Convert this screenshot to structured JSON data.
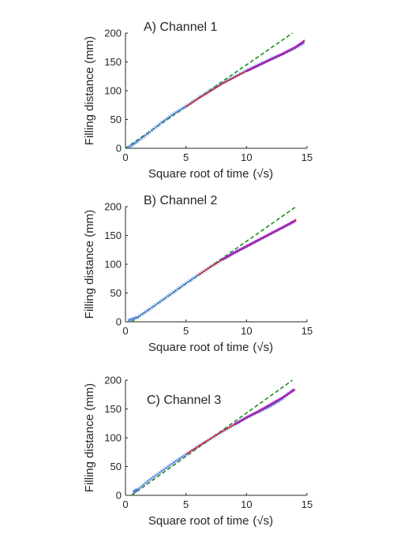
{
  "chart_data": [
    {
      "type": "scatter",
      "title": "A) Channel 1",
      "xlabel": "Square root of time",
      "xlabel_unit": "(√s)",
      "ylabel": "Filling distance (mm)",
      "xlim": [
        0,
        15
      ],
      "ylim": [
        0,
        200
      ],
      "xticks": [
        0,
        5,
        10,
        15
      ],
      "yticks": [
        0,
        50,
        100,
        150,
        200
      ],
      "grid": false,
      "colors": {
        "data": "#4a7bd8",
        "fit_red": "#e02020",
        "fit_magenta": "#a020c0",
        "dashed": "#1e8c1e"
      },
      "data_points": {
        "x": [
          0.3,
          1,
          2,
          3,
          4,
          5,
          6,
          7,
          8,
          9,
          10,
          11,
          12,
          13,
          14,
          14.8
        ],
        "y": [
          2,
          12,
          28,
          45,
          60,
          73,
          87,
          100,
          113,
          124,
          135,
          145,
          155,
          164,
          174,
          184
        ]
      },
      "fit_red": {
        "x": [
          5,
          6,
          7,
          8,
          9,
          10,
          11,
          12,
          13,
          14,
          14.8
        ],
        "y": [
          72,
          86,
          99,
          112,
          123,
          134,
          144,
          154,
          164,
          174,
          188
        ]
      },
      "fit_magenta": {
        "x": [
          10,
          11,
          12,
          13,
          14,
          14.8
        ],
        "y": [
          134,
          144,
          154,
          164,
          175,
          186
        ]
      },
      "dashed_line": {
        "x": [
          0,
          13.8
        ],
        "y": [
          0,
          200
        ]
      }
    },
    {
      "type": "scatter",
      "title": "B) Channel 2",
      "xlabel": "Square root of time",
      "xlabel_unit": "(√s)",
      "ylabel": "Filling distance (mm)",
      "xlim": [
        0,
        15
      ],
      "ylim": [
        0,
        200
      ],
      "xticks": [
        0,
        5,
        10,
        15
      ],
      "yticks": [
        0,
        50,
        100,
        150,
        200
      ],
      "grid": false,
      "colors": {
        "data": "#4a7bd8",
        "fit_red": "#e02020",
        "fit_magenta": "#a020c0",
        "dashed": "#1e8c1e"
      },
      "data_points": {
        "x": [
          0.3,
          1,
          2,
          3,
          4,
          5,
          6,
          7,
          8,
          9,
          10,
          11,
          12,
          13,
          14
        ],
        "y": [
          3,
          8,
          22,
          37,
          52,
          67,
          81,
          95,
          108,
          120,
          131,
          142,
          153,
          164,
          175
        ]
      },
      "fit_red": {
        "x": [
          6,
          7,
          8,
          9,
          10,
          11,
          12,
          13,
          14.1
        ],
        "y": [
          81,
          95,
          108,
          120,
          131,
          142,
          153,
          164,
          178
        ]
      },
      "fit_magenta": {
        "x": [
          8,
          9,
          10,
          11,
          12,
          13,
          14.1
        ],
        "y": [
          108,
          120,
          131,
          142,
          153,
          164,
          176
        ]
      },
      "dashed_line": {
        "x": [
          0.5,
          14.1
        ],
        "y": [
          0,
          200
        ]
      }
    },
    {
      "type": "scatter",
      "title": "C) Channel 3",
      "xlabel": "Square root of time",
      "xlabel_unit": "(√s)",
      "ylabel": "Filling distance (mm)",
      "xlim": [
        0,
        15
      ],
      "ylim": [
        0,
        200
      ],
      "xticks": [
        0,
        5,
        10,
        15
      ],
      "yticks": [
        0,
        50,
        100,
        150,
        200
      ],
      "grid": false,
      "colors": {
        "data": "#4a7bd8",
        "fit_red": "#e02020",
        "fit_magenta": "#a020c0",
        "dashed": "#1e8c1e"
      },
      "data_points": {
        "x": [
          0.7,
          1,
          2,
          3,
          4,
          5,
          6,
          7,
          8,
          9,
          10,
          11,
          12,
          13,
          14
        ],
        "y": [
          6,
          10,
          27,
          42,
          57,
          71,
          85,
          98,
          111,
          123,
          135,
          145,
          155,
          168,
          186
        ]
      },
      "fit_red": {
        "x": [
          5,
          6,
          7,
          8,
          9,
          10,
          11,
          12,
          13,
          14
        ],
        "y": [
          71,
          85,
          98,
          111,
          123,
          135,
          146,
          158,
          170,
          183
        ]
      },
      "fit_magenta": {
        "x": [
          9,
          10,
          11,
          12,
          13,
          14
        ],
        "y": [
          123,
          135,
          146,
          158,
          170,
          184
        ]
      },
      "dashed_line": {
        "x": [
          0.5,
          13.8
        ],
        "y": [
          0,
          200
        ]
      }
    }
  ]
}
